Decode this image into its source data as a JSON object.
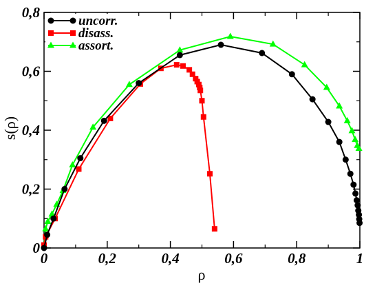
{
  "chart_data": {
    "type": "line",
    "xlabel": "ρ",
    "ylabel": "s(ρ)",
    "xlim": [
      0,
      1
    ],
    "ylim": [
      0,
      0.8
    ],
    "x_ticks": [
      "0",
      "0,2",
      "0,4",
      "0,6",
      "0,8",
      "1"
    ],
    "x_tick_values": [
      0,
      0.2,
      0.4,
      0.6,
      0.8,
      1.0
    ],
    "y_ticks": [
      "0",
      "0,2",
      "0,4",
      "0,6",
      "0,8"
    ],
    "y_tick_values": [
      0,
      0.2,
      0.4,
      0.6,
      0.8
    ],
    "grid": false,
    "legend_position": "top-left",
    "series": [
      {
        "name": "uncorr.",
        "color": "#000000",
        "marker": "circle",
        "x": [
          0,
          0.01,
          0.03,
          0.065,
          0.115,
          0.19,
          0.3,
          0.43,
          0.56,
          0.69,
          0.785,
          0.85,
          0.9,
          0.935,
          0.955,
          0.97,
          0.98,
          0.986,
          0.99,
          0.993,
          0.995,
          0.997,
          0.998,
          0.999
        ],
        "y": [
          0,
          0.045,
          0.1,
          0.2,
          0.305,
          0.432,
          0.56,
          0.655,
          0.69,
          0.662,
          0.59,
          0.505,
          0.428,
          0.36,
          0.3,
          0.252,
          0.215,
          0.185,
          0.162,
          0.145,
          0.127,
          0.113,
          0.098,
          0.085
        ]
      },
      {
        "name": "disass.",
        "color": "#ff0000",
        "marker": "square",
        "x": [
          0,
          0.005,
          0.035,
          0.11,
          0.21,
          0.305,
          0.37,
          0.42,
          0.44,
          0.46,
          0.47,
          0.48,
          0.485,
          0.49,
          0.493,
          0.495,
          0.5,
          0.505,
          0.525,
          0.54
        ],
        "y": [
          0.01,
          0.038,
          0.1,
          0.268,
          0.44,
          0.557,
          0.61,
          0.622,
          0.618,
          0.605,
          0.59,
          0.575,
          0.565,
          0.555,
          0.545,
          0.535,
          0.5,
          0.445,
          0.252,
          0.065
        ]
      },
      {
        "name": "assort.",
        "color": "#00ff00",
        "marker": "triangle",
        "x": [
          0,
          0.005,
          0.012,
          0.025,
          0.04,
          0.06,
          0.09,
          0.155,
          0.27,
          0.43,
          0.59,
          0.725,
          0.825,
          0.895,
          0.935,
          0.96,
          0.975,
          0.985,
          0.992,
          0.997
        ],
        "y": [
          0.01,
          0.065,
          0.09,
          0.115,
          0.148,
          0.195,
          0.282,
          0.41,
          0.555,
          0.672,
          0.718,
          0.692,
          0.622,
          0.545,
          0.482,
          0.432,
          0.398,
          0.368,
          0.348,
          0.338
        ]
      }
    ]
  }
}
